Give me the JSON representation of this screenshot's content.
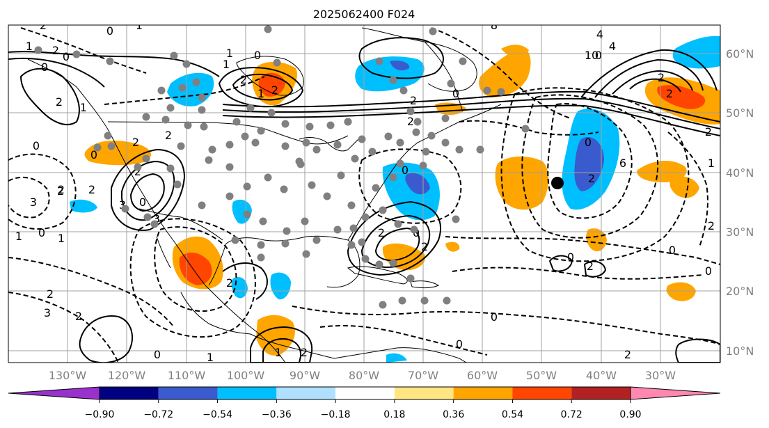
{
  "title": "2025062400 F024",
  "lat_labels": [
    "60°N",
    "50°N",
    "40°N",
    "30°N",
    "20°N",
    "10°N"
  ],
  "lon_labels": [
    "130°W",
    "120°W",
    "110°W",
    "100°W",
    "90°W",
    "80°W",
    "70°W",
    "60°W",
    "50°W",
    "40°W",
    "30°W"
  ],
  "colorbar": {
    "ticks": [
      "−0.90",
      "−0.72",
      "−0.54",
      "−0.36",
      "−0.18",
      "0.18",
      "0.36",
      "0.54",
      "0.72",
      "0.90"
    ],
    "colors": [
      "#9932cc",
      "#000080",
      "#3a5bcd",
      "#00bfff",
      "#b0e0ff",
      "#ffffff",
      "#ffe680",
      "#ffa500",
      "#ff4500",
      "#b22222",
      "#ff88b0"
    ]
  },
  "contour_labels": [
    "2",
    "0",
    "1",
    "2",
    "0",
    "1",
    "0",
    "1",
    "0",
    "2",
    "1",
    "2",
    "2",
    "1",
    "3",
    "2",
    "3",
    "2",
    "2",
    "2",
    "0",
    "2",
    "2",
    "3",
    "2",
    "1",
    "0",
    "2",
    "0",
    "1",
    "2",
    "1",
    "0",
    "3",
    "0",
    "1",
    "2",
    "1",
    "2",
    "2",
    "0",
    "2",
    "0",
    "0",
    "0",
    "2",
    "2",
    "6",
    "4",
    "10",
    "8",
    "2",
    "2",
    "2",
    "1",
    "0",
    "0",
    "2",
    "0",
    "4",
    "2",
    "0",
    "0",
    "2",
    "0"
  ],
  "marker": "storm-center"
}
